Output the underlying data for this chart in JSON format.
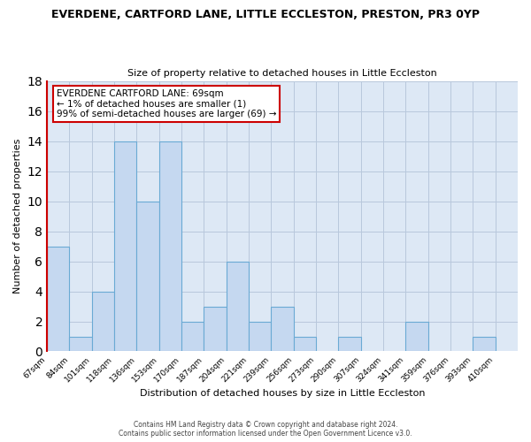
{
  "title": "EVERDENE, CARTFORD LANE, LITTLE ECCLESTON, PRESTON, PR3 0YP",
  "subtitle": "Size of property relative to detached houses in Little Eccleston",
  "xlabel": "Distribution of detached houses by size in Little Eccleston",
  "ylabel": "Number of detached properties",
  "footnote1": "Contains HM Land Registry data © Crown copyright and database right 2024.",
  "footnote2": "Contains public sector information licensed under the Open Government Licence v3.0.",
  "bin_labels": [
    "67sqm",
    "84sqm",
    "101sqm",
    "118sqm",
    "136sqm",
    "153sqm",
    "170sqm",
    "187sqm",
    "204sqm",
    "221sqm",
    "239sqm",
    "256sqm",
    "273sqm",
    "290sqm",
    "307sqm",
    "324sqm",
    "341sqm",
    "359sqm",
    "376sqm",
    "393sqm",
    "410sqm"
  ],
  "bar_heights": [
    7,
    1,
    4,
    14,
    10,
    14,
    2,
    3,
    6,
    2,
    3,
    1,
    0,
    1,
    0,
    0,
    2,
    0,
    0,
    1,
    0
  ],
  "bar_color": "#c5d8f0",
  "bar_edge_color": "#6aaad4",
  "highlight_color": "#cc0000",
  "ylim": [
    0,
    18
  ],
  "yticks": [
    0,
    2,
    4,
    6,
    8,
    10,
    12,
    14,
    16,
    18
  ],
  "annotation_title": "EVERDENE CARTFORD LANE: 69sqm",
  "annotation_line1": "← 1% of detached houses are smaller (1)",
  "annotation_line2": "99% of semi-detached houses are larger (69) →",
  "background_color": "#ffffff",
  "plot_bg_color": "#dde8f5",
  "grid_color": "#b8c8dc"
}
